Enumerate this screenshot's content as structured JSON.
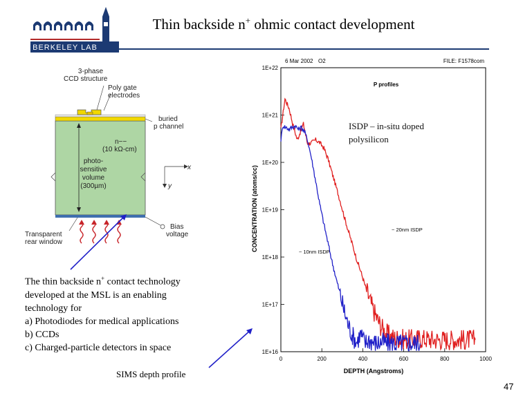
{
  "title_main": "Thin backside n",
  "title_sup": "+",
  "title_rest": " ohmic contact development",
  "logo": {
    "text": "BERKELEY LAB",
    "colors": {
      "red": "#b32a2a",
      "navy": "#1c3a73"
    }
  },
  "ccd_diagram": {
    "labels": {
      "phase": "3-phase",
      "structure": "CCD structure",
      "poly1": "Poly gate",
      "poly2": "electrodes",
      "buried1": "buried",
      "buried2": "p channel",
      "n1": "n−−",
      "n2": "(10 kΩ-cm)",
      "photo1": "photo-",
      "photo2": "sensitive",
      "photo3": "volume",
      "photo4": "(300µm)",
      "axis_x": "x",
      "axis_y": "y",
      "trans1": "Transparent",
      "trans2": "rear window",
      "bias1": "Bias",
      "bias2": "voltage"
    },
    "colors": {
      "substrate": "#aed6a4",
      "gate": "#f2d800",
      "window": "#3f6fae",
      "photon": "#c8262b"
    }
  },
  "chart_data": {
    "type": "line",
    "header_date": "6 Mar 2002",
    "header_id": "O2",
    "header_file": "FILE: F1578com",
    "plot_title": "P profiles",
    "xlabel": "DEPTH (Angstroms)",
    "ylabel": "CONCENTRATION (atoms/cc)",
    "xlim": [
      0,
      1000
    ],
    "ylim_log10": [
      16,
      22
    ],
    "x_ticks": [
      "0",
      "200",
      "400",
      "600",
      "800",
      "1000"
    ],
    "y_ticks": [
      "1E+16",
      "1E+17",
      "1E+18",
      "1E+19",
      "1E+20",
      "1E+21",
      "1E+22"
    ],
    "series": [
      {
        "name": "~ 20nm ISDP",
        "color": "#e02020",
        "x": [
          0,
          20,
          40,
          60,
          80,
          100,
          110,
          130,
          150,
          170,
          190,
          210,
          230,
          250,
          270,
          290,
          310,
          330,
          350,
          370,
          390,
          410,
          430,
          450,
          470,
          490,
          510,
          530,
          550,
          580,
          620,
          680,
          750,
          820,
          900,
          950
        ],
        "y": [
          5e+20,
          2.2e+21,
          1.4e+21,
          6e+20,
          3e+20,
          5e+20,
          6.5e+20,
          2.5e+20,
          2.6e+20,
          3e+20,
          2.6e+20,
          2e+20,
          1.2e+20,
          6e+19,
          3e+19,
          1.5e+19,
          7e+18,
          3.5e+18,
          1.8e+18,
          9e+17,
          5e+17,
          2.6e+17,
          1.4e+17,
          8e+16,
          5e+16,
          3.4e+16,
          2.6e+16,
          2.2e+16,
          2e+16,
          1.9e+16,
          1.8e+16,
          1.9e+16,
          1.8e+16,
          1.8e+16,
          1.8e+16,
          1.8e+16
        ]
      },
      {
        "name": "~ 10nm ISDP",
        "color": "#2020c8",
        "x": [
          0,
          10,
          25,
          40,
          55,
          70,
          85,
          100,
          115,
          130,
          150,
          170,
          190,
          210,
          230,
          250,
          270,
          290,
          310,
          330,
          350,
          370,
          390,
          410,
          430,
          450,
          470,
          490,
          520,
          560,
          620,
          680
        ],
        "y": [
          3e+20,
          6e+20,
          5.5e+20,
          5e+20,
          5.5e+20,
          6e+20,
          5e+20,
          5.5e+20,
          4.5e+20,
          3e+20,
          1.2e+20,
          4e+19,
          1.3e+19,
          5e+18,
          2e+18,
          8e+17,
          3.5e+17,
          1.6e+17,
          7e+16,
          3.6e+16,
          2.2e+16,
          1.6e+16,
          2.4e+16,
          1.5e+16,
          1.8e+16,
          1.6e+16,
          1.5e+16,
          1.6e+16,
          1.5e+16,
          1.5e+16,
          1.5e+16,
          1.5e+16
        ]
      }
    ],
    "annotations": [
      "~ 20nm ISDP",
      "~ 10nm ISDP"
    ]
  },
  "isdp_note": {
    "line1": "ISDP – in-situ doped",
    "line2": "polysilicon"
  },
  "bullets": {
    "line1_a": "The thin backside n",
    "line1_sup": "+",
    "line1_b": " contact technology",
    "line2": "developed at the MSL is an enabling",
    "line3": "technology for",
    "item_a": "a)  Photodiodes for medical applications",
    "item_b": "b)  CCDs",
    "item_c": "c)  Charged-particle detectors in space"
  },
  "sims_caption": "SIMS depth profile",
  "page_number": "47"
}
